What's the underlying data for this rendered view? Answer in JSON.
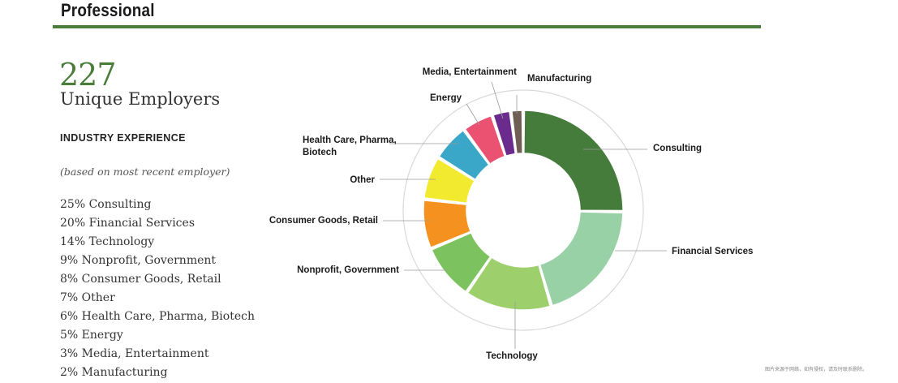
{
  "header": {
    "title": "Professional"
  },
  "summary": {
    "number": "227",
    "caption": "Unique Employers"
  },
  "industry": {
    "heading": "INDUSTRY EXPERIENCE",
    "note": "(based on most recent employer)",
    "items": [
      "25% Consulting",
      "20% Financial Services",
      "14% Technology",
      "9% Nonprofit, Government",
      "8% Consumer Goods, Retail",
      "7% Other",
      "6% Health Care, Pharma, Biotech",
      "5% Energy",
      "3% Media, Entertainment",
      "2% Manufacturing"
    ]
  },
  "chart_data": {
    "type": "pie",
    "donut": true,
    "title": "",
    "categories": [
      "Consulting",
      "Financial Services",
      "Technology",
      "Nonprofit, Government",
      "Consumer Goods, Retail",
      "Other",
      "Health Care, Pharma, Biotech",
      "Energy",
      "Media, Entertainment",
      "Manufacturing"
    ],
    "values": [
      25,
      20,
      14,
      9,
      8,
      7,
      6,
      5,
      3,
      2
    ],
    "unit": "%",
    "colors": [
      "#467c3b",
      "#99d1a6",
      "#9dcf6d",
      "#7cc35f",
      "#f5911f",
      "#f2ea2f",
      "#3aa7c9",
      "#eb5271",
      "#6a2b8c",
      "#6e5e54"
    ],
    "labels": [
      [
        "Consulting"
      ],
      [
        "Financial Services"
      ],
      [
        "Technology"
      ],
      [
        "Nonprofit, Government"
      ],
      [
        "Consumer Goods, Retail"
      ],
      [
        "Other"
      ],
      [
        "Health Care, Pharma,",
        "Biotech"
      ],
      [
        "Energy"
      ],
      [
        "Media, Entertainment"
      ],
      [
        "Manufacturing"
      ]
    ],
    "legend": "none"
  },
  "watermark": "图片来源于网络，如有侵权，请及时联系删除。"
}
